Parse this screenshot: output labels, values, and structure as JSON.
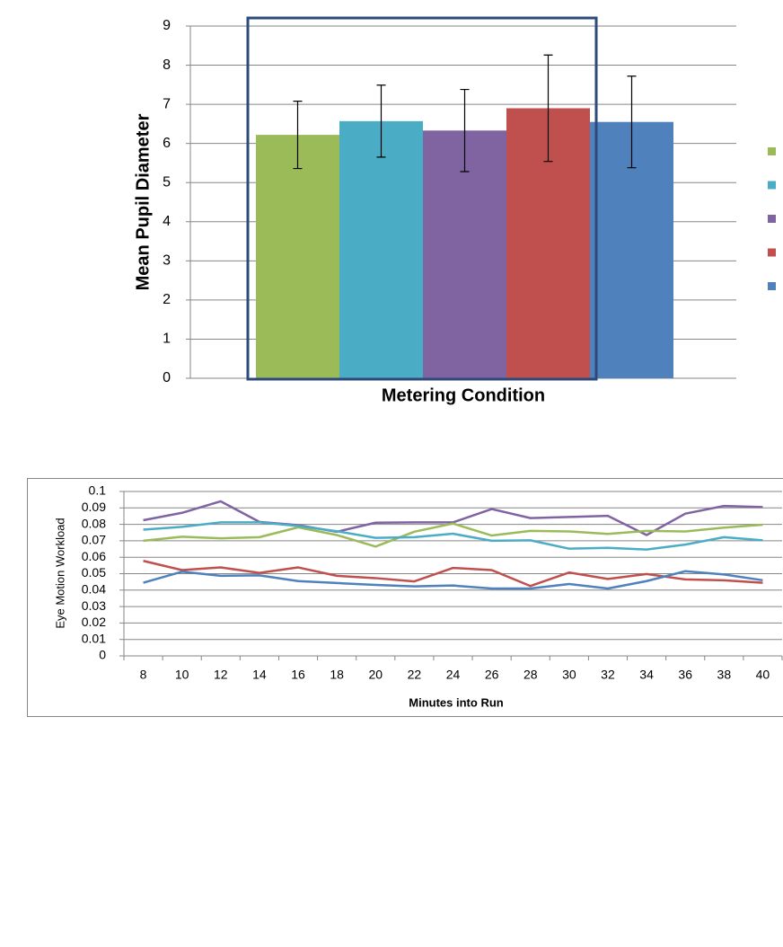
{
  "chart_data": [
    {
      "type": "bar",
      "ylabel": "Mean Pupil Diameter",
      "xlabel": "Metering Condition",
      "ylim": [
        0,
        9
      ],
      "yticks": [
        0,
        1,
        2,
        3,
        4,
        5,
        6,
        7,
        8,
        9
      ],
      "grid": true,
      "series": [
        {
          "color": "#9bbb59",
          "values": [
            6.22
          ],
          "errors": [
            0.86
          ]
        },
        {
          "color": "#4bacc6",
          "values": [
            6.57
          ],
          "errors": [
            0.92
          ]
        },
        {
          "color": "#8064a2",
          "values": [
            6.33
          ],
          "errors": [
            1.05
          ]
        },
        {
          "color": "#c0504d",
          "values": [
            6.9
          ],
          "errors": [
            1.36
          ]
        },
        {
          "color": "#4f81bd",
          "values": [
            6.55
          ],
          "errors": [
            1.17
          ]
        }
      ]
    },
    {
      "type": "line",
      "ylabel": "Eye Motion Workload",
      "xlabel": "Minutes into Run",
      "x": [
        8,
        10,
        12,
        14,
        16,
        18,
        20,
        22,
        24,
        26,
        28,
        30,
        32,
        34,
        36,
        38,
        40
      ],
      "xlim": [
        7,
        41
      ],
      "xticks": [
        8,
        10,
        12,
        14,
        16,
        18,
        20,
        22,
        24,
        26,
        28,
        30,
        32,
        34,
        36,
        38,
        40
      ],
      "ylim": [
        0,
        0.1
      ],
      "yticks": [
        0,
        0.01,
        0.02,
        0.03,
        0.04,
        0.05,
        0.06,
        0.07,
        0.08,
        0.09,
        0.1
      ],
      "grid": true,
      "series": [
        {
          "color": "#8064a2",
          "values": [
            0.0825,
            0.087,
            0.094,
            0.0815,
            0.0795,
            0.0755,
            0.081,
            0.0812,
            0.0812,
            0.0893,
            0.0838,
            0.0845,
            0.0852,
            0.0735,
            0.0865,
            0.0912,
            0.0905
          ]
        },
        {
          "color": "#9bbb59",
          "values": [
            0.07,
            0.0725,
            0.0715,
            0.0722,
            0.0782,
            0.0735,
            0.0665,
            0.0755,
            0.0805,
            0.0732,
            0.076,
            0.0757,
            0.0742,
            0.076,
            0.0757,
            0.078,
            0.0798
          ]
        },
        {
          "color": "#4bacc6",
          "values": [
            0.0768,
            0.0785,
            0.0812,
            0.0812,
            0.079,
            0.0758,
            0.0718,
            0.0722,
            0.0743,
            0.07,
            0.0703,
            0.0652,
            0.0657,
            0.0647,
            0.0677,
            0.0722,
            0.0703
          ]
        },
        {
          "color": "#c0504d",
          "values": [
            0.0578,
            0.0522,
            0.0538,
            0.0505,
            0.0538,
            0.0487,
            0.0473,
            0.0453,
            0.0535,
            0.0522,
            0.0425,
            0.0507,
            0.0468,
            0.0498,
            0.0465,
            0.046,
            0.0445
          ]
        },
        {
          "color": "#4f81bd",
          "values": [
            0.0445,
            0.0512,
            0.0487,
            0.049,
            0.0455,
            0.0443,
            0.0432,
            0.0423,
            0.0428,
            0.041,
            0.041,
            0.0437,
            0.041,
            0.0455,
            0.0515,
            0.0495,
            0.046
          ]
        }
      ]
    }
  ]
}
